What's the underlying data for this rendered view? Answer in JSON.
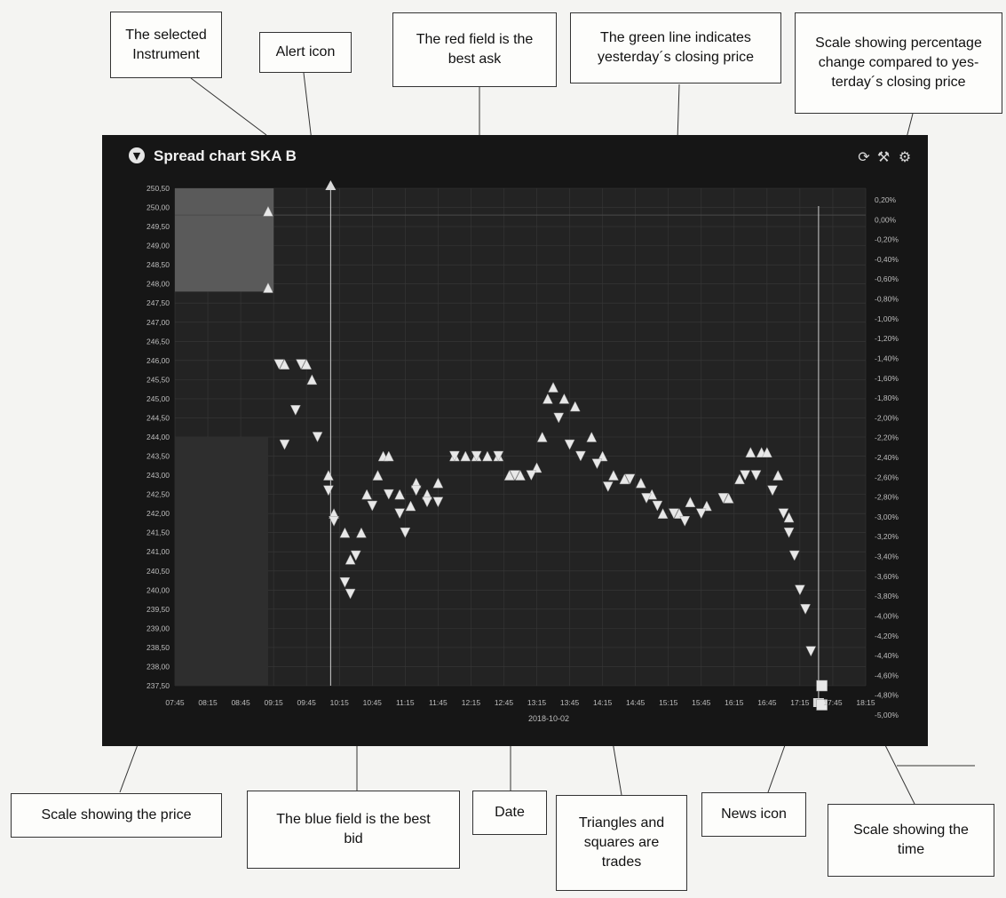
{
  "annotations": {
    "selected_instrument": "The selected\nInstrument",
    "alert_icon": "Alert icon",
    "best_ask": "The red field is the\nbest ask",
    "closing_line": "The green line indicates\nyesterday´s closing price",
    "pct_scale": "Scale showing percentage\nchange compared to yes-\nterday´s closing price",
    "price_scale": "Scale showing the price",
    "best_bid": "The blue field is the best\nbid",
    "date": "Date",
    "trades": "Triangles and\nsquares are\ntrades",
    "news_icon": "News icon",
    "time_scale": "Scale showing the\ntime"
  },
  "panel": {
    "title": "Spread chart SKA B",
    "collapse_icon": "chevron-down-icon",
    "icons": [
      "refresh-icon",
      "wrench-icon",
      "settings-icon"
    ]
  },
  "chart_data": {
    "type": "scatter",
    "date": "2018-10-02",
    "y_ticks": [
      "250,50",
      "250,00",
      "249,50",
      "249,00",
      "248,50",
      "248,00",
      "247,50",
      "247,00",
      "246,50",
      "246,00",
      "245,50",
      "245,00",
      "244,50",
      "244,00",
      "243,50",
      "243,00",
      "242,50",
      "242,00",
      "241,50",
      "241,00",
      "240,50",
      "240,00",
      "239,50",
      "239,00",
      "238,50",
      "238,00",
      "237,50"
    ],
    "pct_ticks": [
      "0,20%",
      "0,00%",
      "-0,20%",
      "-0,40%",
      "-0,60%",
      "-0,80%",
      "-1,00%",
      "-1,20%",
      "-1,40%",
      "-1,60%",
      "-1,80%",
      "-2,00%",
      "-2,20%",
      "-2,40%",
      "-2,60%",
      "-2,80%",
      "-3,00%",
      "-3,20%",
      "-3,40%",
      "-3,60%",
      "-3,80%",
      "-4,00%",
      "-4,20%",
      "-4,40%",
      "-4,60%",
      "-4,80%",
      "-5,00%"
    ],
    "x_ticks": [
      "07:45",
      "08:15",
      "08:45",
      "09:15",
      "09:45",
      "10:15",
      "10:45",
      "11:15",
      "11:45",
      "12:15",
      "12:45",
      "13:15",
      "13:45",
      "14:15",
      "14:45",
      "15:15",
      "15:45",
      "16:15",
      "16:45",
      "17:15",
      "17:45",
      "18:15"
    ],
    "ylim": [
      237.5,
      250.5
    ],
    "alert_time": "10:07",
    "news_time": "17:32",
    "closing_price": 249.8,
    "best_ask_region": {
      "from": "07:45",
      "to": "09:15",
      "low": 247.8,
      "high": 250.5
    },
    "best_bid_region": {
      "from": "07:45",
      "to": "09:10",
      "low": 237.5,
      "high": 244.0
    },
    "trades_up": [
      [
        "09:10",
        249.9
      ],
      [
        "09:10",
        247.9
      ],
      [
        "09:25",
        245.9
      ],
      [
        "09:45",
        245.9
      ],
      [
        "09:50",
        245.5
      ],
      [
        "10:05",
        243.0
      ],
      [
        "10:10",
        242.0
      ],
      [
        "10:20",
        241.5
      ],
      [
        "10:25",
        240.8
      ],
      [
        "10:35",
        241.5
      ],
      [
        "10:40",
        242.5
      ],
      [
        "10:50",
        243.0
      ],
      [
        "10:55",
        243.5
      ],
      [
        "11:00",
        243.5
      ],
      [
        "11:10",
        242.5
      ],
      [
        "11:20",
        242.2
      ],
      [
        "11:25",
        242.8
      ],
      [
        "11:35",
        242.5
      ],
      [
        "11:45",
        242.8
      ],
      [
        "12:00",
        243.5
      ],
      [
        "12:10",
        243.5
      ],
      [
        "12:20",
        243.5
      ],
      [
        "12:30",
        243.5
      ],
      [
        "12:40",
        243.5
      ],
      [
        "12:50",
        243.0
      ],
      [
        "13:00",
        243.0
      ],
      [
        "13:15",
        243.2
      ],
      [
        "13:20",
        244.0
      ],
      [
        "13:25",
        245.0
      ],
      [
        "13:30",
        245.3
      ],
      [
        "13:40",
        245.0
      ],
      [
        "13:50",
        244.8
      ],
      [
        "14:05",
        244.0
      ],
      [
        "14:15",
        243.5
      ],
      [
        "14:25",
        243.0
      ],
      [
        "14:35",
        242.9
      ],
      [
        "14:50",
        242.8
      ],
      [
        "15:00",
        242.5
      ],
      [
        "15:10",
        242.0
      ],
      [
        "15:25",
        242.0
      ],
      [
        "15:35",
        242.3
      ],
      [
        "15:50",
        242.2
      ],
      [
        "16:10",
        242.4
      ],
      [
        "16:20",
        242.9
      ],
      [
        "16:30",
        243.6
      ],
      [
        "16:40",
        243.6
      ],
      [
        "16:45",
        243.6
      ],
      [
        "16:55",
        243.0
      ],
      [
        "17:05",
        241.9
      ]
    ],
    "trades_down": [
      [
        "09:20",
        245.9
      ],
      [
        "09:25",
        243.8
      ],
      [
        "09:35",
        244.7
      ],
      [
        "09:40",
        245.9
      ],
      [
        "09:55",
        244.0
      ],
      [
        "10:05",
        242.6
      ],
      [
        "10:10",
        241.8
      ],
      [
        "10:20",
        240.2
      ],
      [
        "10:25",
        239.9
      ],
      [
        "10:30",
        240.9
      ],
      [
        "10:45",
        242.2
      ],
      [
        "11:00",
        242.5
      ],
      [
        "11:10",
        242.0
      ],
      [
        "11:15",
        241.5
      ],
      [
        "11:25",
        242.6
      ],
      [
        "11:35",
        242.3
      ],
      [
        "11:45",
        242.3
      ],
      [
        "12:00",
        243.5
      ],
      [
        "12:20",
        243.5
      ],
      [
        "12:40",
        243.5
      ],
      [
        "12:55",
        243.0
      ],
      [
        "13:10",
        243.0
      ],
      [
        "13:35",
        244.5
      ],
      [
        "13:45",
        243.8
      ],
      [
        "13:55",
        243.5
      ],
      [
        "14:10",
        243.3
      ],
      [
        "14:20",
        242.7
      ],
      [
        "14:40",
        242.9
      ],
      [
        "14:55",
        242.4
      ],
      [
        "15:05",
        242.2
      ],
      [
        "15:20",
        242.0
      ],
      [
        "15:30",
        241.8
      ],
      [
        "15:45",
        242.0
      ],
      [
        "16:05",
        242.4
      ],
      [
        "16:25",
        243.0
      ],
      [
        "16:35",
        243.0
      ],
      [
        "16:50",
        242.6
      ],
      [
        "17:00",
        242.0
      ],
      [
        "17:05",
        241.5
      ],
      [
        "17:10",
        240.9
      ],
      [
        "17:15",
        240.0
      ],
      [
        "17:20",
        239.5
      ],
      [
        "17:25",
        238.4
      ]
    ],
    "trades_square": [
      [
        "17:35",
        237.5
      ],
      [
        "17:35",
        237.0
      ]
    ]
  }
}
